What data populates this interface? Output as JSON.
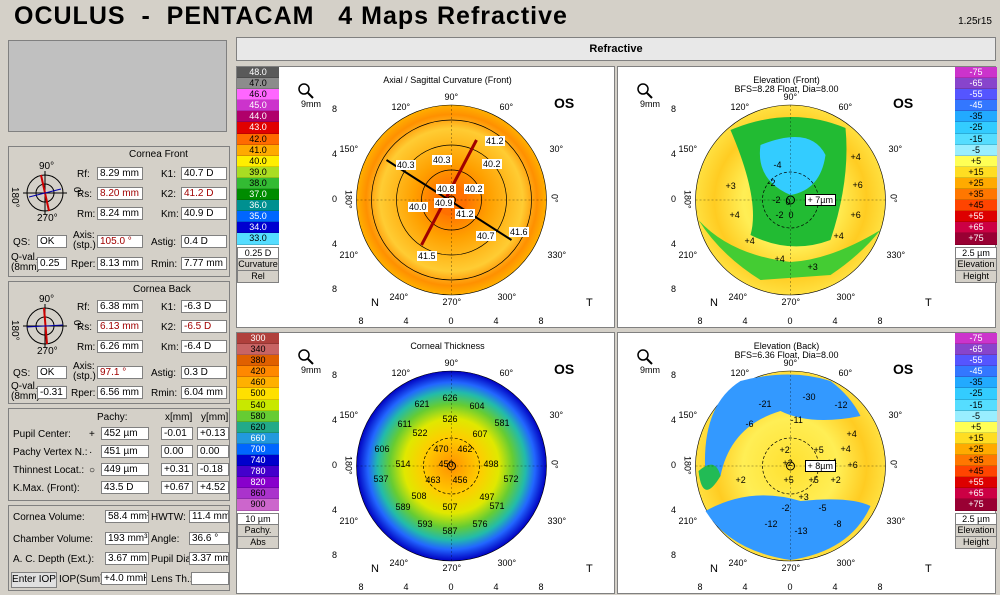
{
  "title": "OCULUS  -  PENTACAM   4 Maps Refractive",
  "version": "1.25r15",
  "topbar_label": "Refractive",
  "eye": "OS",
  "cornea_front": {
    "title": "Cornea Front",
    "rf": "8.29 mm",
    "rs": "8.20 mm",
    "rm": "8.24 mm",
    "k1": "40.7 D",
    "k2": "41.2 D",
    "km": "40.9 D",
    "qs": "OK",
    "axis": "105.0 °",
    "astig": "0.4 D",
    "qval": "0.25",
    "rper": "8.13 mm",
    "rmin": "7.77 mm"
  },
  "cornea_back": {
    "title": "Cornea Back",
    "rf": "6.38 mm",
    "rs": "6.13 mm",
    "rm": "6.26 mm",
    "k1": "-6.3 D",
    "k2": "-6.5 D",
    "km": "-6.4 D",
    "qs": "OK",
    "axis": "97.1 °",
    "astig": "0.3 D",
    "qval": "-0.31",
    "rper": "6.56 mm",
    "rmin": "6.04 mm"
  },
  "labels": {
    "rf": "Rf:",
    "rs": "Rs:",
    "rm": "Rm:",
    "k1": "K1:",
    "k2": "K2:",
    "km": "Km:",
    "qs": "QS:",
    "axis": "Axis:\n(stp.)",
    "astig": "Astig:",
    "qval": "Q-val.\n(8mm)",
    "rper": "Rper:",
    "rmin": "Rmin:",
    "pachy": "Pachy:",
    "xmm": "x[mm]",
    "ymm": "y[mm]"
  },
  "compass": {
    "top": "90°",
    "bottom": "270°",
    "left": "180°",
    "right": "0°"
  },
  "pachy_table": [
    {
      "label": "Pupil Center:",
      "sym": "+",
      "val": "452 µm",
      "x": "-0.01",
      "y": "+0.13"
    },
    {
      "label": "Pachy Vertex N.:",
      "sym": "·",
      "val": "451 µm",
      "x": "0.00",
      "y": "0.00"
    },
    {
      "label": "Thinnest Locat.:",
      "sym": "○",
      "val": "449 µm",
      "x": "+0.31",
      "y": "-0.18"
    },
    {
      "label": "K.Max. (Front):",
      "sym": "",
      "val": "43.5 D",
      "x": "+0.67",
      "y": "+4.52"
    }
  ],
  "bottom": {
    "cornea_volume_label": "Cornea Volume:",
    "cornea_volume": "58.4 mm³",
    "hwtw_label": "HWTW:",
    "hwtw": "11.4 mm",
    "chamber_volume_label": "Chamber Volume:",
    "chamber_volume": "193 mm³",
    "angle_label": "Angle:",
    "angle": "36.6 °",
    "acdepth_label": "A. C. Depth (Ext.):",
    "acdepth": "3.67 mm",
    "pupil_dia_label": "Pupil Dia:",
    "pupil_dia": "3.37 mm",
    "enter_iop": "Enter IOP",
    "iop_label": "IOP(Sum):",
    "iop": "+4.0 mmHg",
    "lens_label": "Lens Th.:",
    "lens": ""
  },
  "maps": {
    "axial": {
      "title": "Axial / Sagittal Curvature (Front)",
      "subtitle": "",
      "scale": [
        "48.0",
        "47.0",
        "46.0",
        "45.0",
        "44.0",
        "43.0",
        "42.0",
        "41.0",
        "40.0",
        "39.0",
        "38.0",
        "37.0",
        "36.0",
        "35.0",
        "34.0",
        "33.0"
      ],
      "step": "0.25 D",
      "type1": "Curvature",
      "type2": "Rel",
      "values": [
        "41.2",
        "40.3",
        "40.3",
        "40.2",
        "40.8",
        "40.2",
        "40.0",
        "40.9",
        "41.2",
        "40.7",
        "41.6",
        "41.5"
      ]
    },
    "elev_front": {
      "title": "Elevation (Front)",
      "subtitle": "BFS=8.28 Float, Dia=8.00",
      "scale": [
        "-75",
        "-65",
        "-55",
        "-45",
        "-35",
        "-25",
        "-15",
        "-5",
        "+5",
        "+15",
        "+25",
        "+35",
        "+45",
        "+55",
        "+65",
        "+75"
      ],
      "step": "2.5 µm",
      "type1": "Elevation",
      "type2": "Height",
      "values": [
        "-4",
        "-2",
        "+4",
        "+3",
        "-2",
        "0",
        "-2",
        "0",
        "+2",
        "+6",
        "+4",
        "+6",
        "+4",
        "+4",
        "+3",
        "+4"
      ],
      "marker": "+ 7µm"
    },
    "pachy": {
      "title": "Corneal Thickness",
      "subtitle": "",
      "scale": [
        "300",
        "340",
        "380",
        "420",
        "460",
        "500",
        "540",
        "580",
        "620",
        "660",
        "700",
        "740",
        "780",
        "820",
        "860",
        "900"
      ],
      "step": "10 µm",
      "type1": "Pachy.",
      "type2": "Abs",
      "values": [
        "626",
        "621",
        "604",
        "526",
        "611",
        "607",
        "581",
        "522",
        "470",
        "462",
        "606",
        "514",
        "450",
        "498",
        "572",
        "537",
        "463",
        "456",
        "508",
        "497",
        "589",
        "507",
        "571",
        "593",
        "576",
        "587"
      ]
    },
    "elev_back": {
      "title": "Elevation (Back)",
      "subtitle": "BFS=6.36 Float, Dia=8.00",
      "scale": [
        "-75",
        "-65",
        "-55",
        "-45",
        "-35",
        "-25",
        "-15",
        "-5",
        "+5",
        "+15",
        "+25",
        "+35",
        "+45",
        "+55",
        "+65",
        "+75"
      ],
      "step": "2.5 µm",
      "type1": "Elevation",
      "type2": "Height",
      "values": [
        "-30",
        "-21",
        "-12",
        "-6",
        "-11",
        "+4",
        "+2",
        "+5",
        "+4",
        "+4",
        "+2",
        "+6",
        "+5",
        "+5",
        "+2",
        "+2",
        "+3",
        "-5",
        "-12",
        "-13",
        "-8",
        "-2"
      ],
      "marker": "+ 8µm"
    }
  },
  "axis_labels": {
    "top": "90°",
    "bottom": "270°",
    "left": "180°",
    "right": "0°",
    "diag": [
      "120°",
      "60°",
      "150°",
      "30°",
      "210°",
      "330°",
      "240°",
      "300°"
    ],
    "nasal": "N",
    "temporal": "T",
    "zoom": "9mm",
    "yticks": [
      "8",
      "4",
      "0",
      "4",
      "8"
    ],
    "xticks": [
      "8",
      "4",
      "0",
      "4",
      "8"
    ]
  },
  "colors": {
    "background": "#d4d0c8",
    "bar": "#e8e8e8"
  }
}
